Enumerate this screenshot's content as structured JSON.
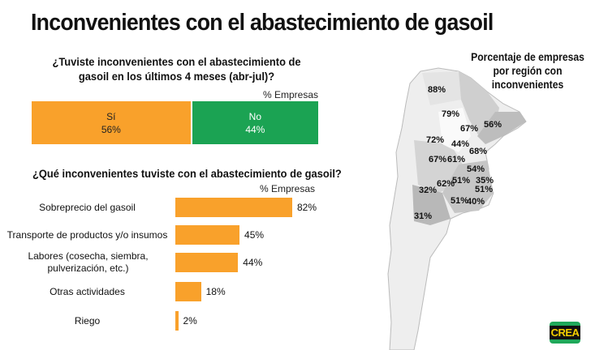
{
  "title": "Inconvenientes con el abastecimiento de gasoil",
  "chart_data": [
    {
      "type": "bar",
      "orientation": "stacked-horizontal",
      "title": "¿Tuviste inconvenientes con el abastecimiento de gasoil en los últimos 4 meses (abr-jul)?",
      "unit_label": "% Empresas",
      "categories": [
        "Sí",
        "No"
      ],
      "values": [
        56,
        44
      ],
      "value_labels": [
        "56%",
        "44%"
      ],
      "colors": [
        "#f9a12b",
        "#1ba353"
      ]
    },
    {
      "type": "bar",
      "orientation": "horizontal",
      "title": "¿Qué inconvenientes tuviste con el abastecimiento de gasoil?",
      "unit_label": "% Empresas",
      "categories": [
        "Sobreprecio del gasoil",
        "Transporte de productos y/o insumos",
        "Labores (cosecha, siembra, pulverización, etc.)",
        "Otras actividades",
        "Riego"
      ],
      "values": [
        82,
        45,
        44,
        18,
        2
      ],
      "value_labels": [
        "82%",
        "45%",
        "44%",
        "18%",
        "2%"
      ],
      "color": "#f9a12b"
    },
    {
      "type": "map",
      "title": "Porcentaje de empresas por región con inconvenientes",
      "region_values": [
        "88%",
        "79%",
        "67%",
        "56%",
        "72%",
        "44%",
        "68%",
        "67%",
        "61%",
        "54%",
        "51%",
        "35%",
        "62%",
        "32%",
        "51%",
        "51%",
        "40%",
        "31%"
      ]
    }
  ],
  "logo": "CREA"
}
